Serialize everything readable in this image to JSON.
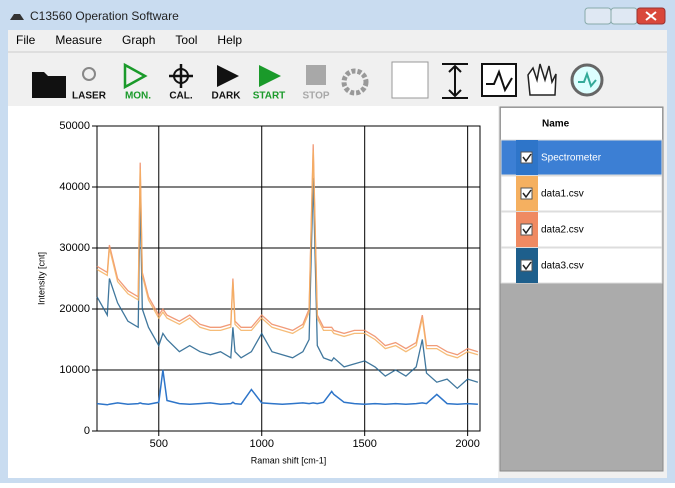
{
  "window": {
    "title": "C13560 Operation Software"
  },
  "menu": [
    "File",
    "Measure",
    "Graph",
    "Tool",
    "Help"
  ],
  "toolbar": [
    "LASER",
    "MON.",
    "CAL.",
    "DARK",
    "START",
    "STOP"
  ],
  "list": {
    "header": "Name"
  },
  "chart_data": {
    "type": "line",
    "xlabel": "Raman shift [cm-1]",
    "ylabel": "Intensity [cnt]",
    "x": [
      200,
      250,
      260,
      300,
      350,
      400,
      410,
      420,
      450,
      500,
      520,
      540,
      600,
      650,
      700,
      750,
      800,
      850,
      860,
      870,
      900,
      950,
      1000,
      1050,
      1100,
      1150,
      1200,
      1230,
      1250,
      1270,
      1300,
      1340,
      1350,
      1400,
      1450,
      1500,
      1550,
      1600,
      1650,
      1700,
      1750,
      1780,
      1800,
      1850,
      1900,
      1950,
      2000,
      2050
    ],
    "xlim": [
      200,
      2060
    ],
    "xticks": [
      500,
      1000,
      1500,
      2000
    ],
    "ylim": [
      0,
      50000
    ],
    "yticks": [
      0,
      10000,
      20000,
      30000,
      40000,
      50000
    ],
    "grid": true,
    "series": [
      {
        "name": "Spectrometer",
        "color": "#2e75c9",
        "values": [
          4500,
          4300,
          4400,
          4600,
          4400,
          4500,
          4600,
          4500,
          4400,
          4700,
          10000,
          5000,
          4500,
          4400,
          4500,
          4600,
          4400,
          4500,
          4700,
          4500,
          4400,
          6800,
          4600,
          4500,
          4400,
          4500,
          4600,
          4500,
          4600,
          4500,
          4700,
          6500,
          6000,
          4700,
          4500,
          4400,
          4500,
          4400,
          4500,
          4400,
          4500,
          4600,
          4500,
          6000,
          4500,
          4400,
          4500,
          4400
        ]
      },
      {
        "name": "data1.csv",
        "color": "#f5b060",
        "values": [
          26500,
          25500,
          30000,
          24500,
          22500,
          21500,
          43000,
          25500,
          21500,
          18500,
          19500,
          18500,
          17500,
          18500,
          17000,
          16500,
          16500,
          17000,
          24500,
          17500,
          16500,
          16500,
          18500,
          17000,
          16500,
          16000,
          17000,
          19500,
          46000,
          18500,
          16500,
          16500,
          16000,
          15500,
          16000,
          16000,
          15000,
          13500,
          14000,
          13000,
          14000,
          18500,
          13500,
          13500,
          12500,
          12000,
          13000,
          12500
        ]
      },
      {
        "name": "data2.csv",
        "color": "#ef8a62",
        "values": [
          27000,
          26000,
          30500,
          25000,
          23000,
          22000,
          44000,
          26000,
          22000,
          19000,
          20000,
          19000,
          18000,
          19000,
          17500,
          17000,
          17000,
          17500,
          25000,
          18000,
          17000,
          17000,
          19000,
          17500,
          17000,
          16500,
          17500,
          20000,
          47000,
          19000,
          17000,
          17000,
          16500,
          16000,
          16500,
          16500,
          15500,
          14000,
          14500,
          13500,
          14500,
          19000,
          14000,
          14000,
          13000,
          12500,
          13500,
          13000
        ]
      },
      {
        "name": "data3.csv",
        "color": "#1e5f8c",
        "values": [
          22000,
          19000,
          25000,
          21000,
          18000,
          17000,
          38500,
          20000,
          17000,
          14000,
          16000,
          15000,
          13000,
          14000,
          13000,
          12500,
          13000,
          12000,
          17000,
          13000,
          12000,
          13000,
          16000,
          13000,
          12500,
          12000,
          13000,
          15000,
          41500,
          14000,
          12000,
          11500,
          12000,
          10500,
          11000,
          11500,
          10500,
          9000,
          10000,
          9000,
          10500,
          15000,
          9500,
          8000,
          8500,
          7000,
          8500,
          8000
        ]
      }
    ]
  }
}
